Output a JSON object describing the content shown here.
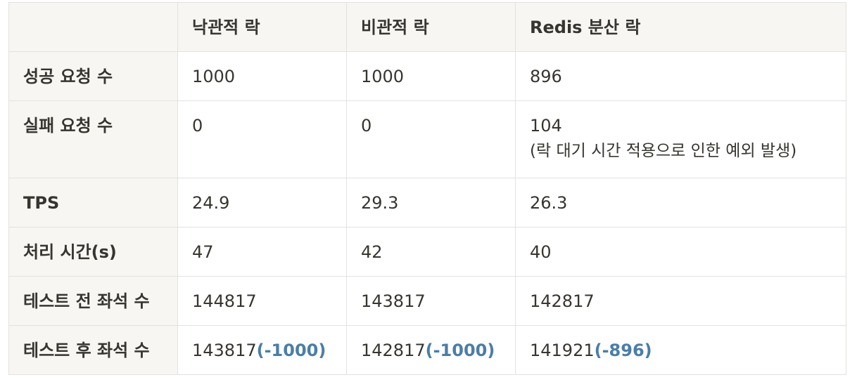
{
  "table": {
    "headers": [
      "",
      "낙관적 락",
      "비관적 락",
      "Redis 분산 락"
    ],
    "rows": [
      {
        "label": "성공 요청 수",
        "cells": [
          {
            "value": "1000"
          },
          {
            "value": "1000"
          },
          {
            "value": "896"
          }
        ]
      },
      {
        "label": "실패 요청 수",
        "cells": [
          {
            "value": "0"
          },
          {
            "value": "0"
          },
          {
            "value": "104",
            "note": "(락 대기 시간 적용으로 인한 예외 발생)"
          }
        ]
      },
      {
        "label": "TPS",
        "cells": [
          {
            "value": "24.9"
          },
          {
            "value": "29.3"
          },
          {
            "value": "26.3"
          }
        ]
      },
      {
        "label": "처리 시간(s)",
        "cells": [
          {
            "value": "47"
          },
          {
            "value": "42"
          },
          {
            "value": "40"
          }
        ]
      },
      {
        "label": "테스트 전 좌석 수",
        "cells": [
          {
            "value": "144817"
          },
          {
            "value": "143817"
          },
          {
            "value": "142817"
          }
        ]
      },
      {
        "label": "테스트 후 좌석 수",
        "cells": [
          {
            "value": "143817",
            "diff": "(-1000)"
          },
          {
            "value": "142817",
            "diff": "(-1000)"
          },
          {
            "value": "141921",
            "diff": "(-896)"
          }
        ]
      }
    ]
  },
  "colors": {
    "header_bg": "#f7f6f3",
    "border": "#e3e2e0",
    "text": "#37352f",
    "diff_accent": "#4a7ea8"
  }
}
